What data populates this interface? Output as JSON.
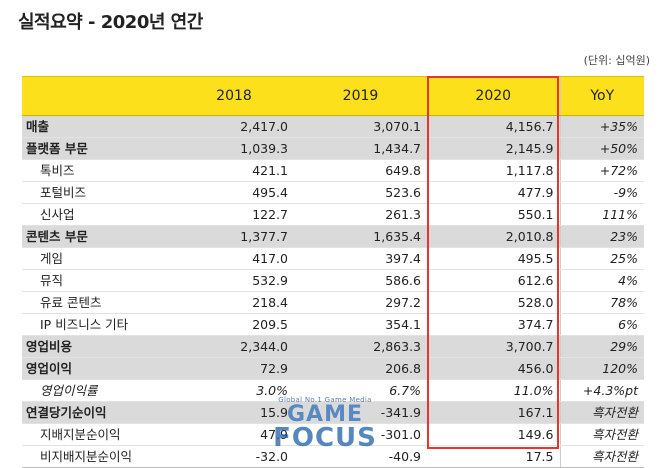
{
  "title": "실적요약 - 2020년 연간",
  "unit": "(단위: 십억원)",
  "columns": [
    "2018",
    "2019",
    "2020",
    "YoY"
  ],
  "rows": [
    {
      "label": "매출",
      "v2018": "2,417.0",
      "v2019": "3,070.1",
      "v2020": "4,156.7",
      "yoy": "+35%",
      "kind": "major"
    },
    {
      "label": "플랫폼 부문",
      "v2018": "1,039.3",
      "v2019": "1,434.7",
      "v2020": "2,145.9",
      "yoy": "+50%",
      "kind": "major"
    },
    {
      "label": "톡비즈",
      "v2018": "421.1",
      "v2019": "649.8",
      "v2020": "1,117.8",
      "yoy": "+72%",
      "kind": "sub"
    },
    {
      "label": "포털비즈",
      "v2018": "495.4",
      "v2019": "523.6",
      "v2020": "477.9",
      "yoy": "-9%",
      "kind": "sub"
    },
    {
      "label": "신사업",
      "v2018": "122.7",
      "v2019": "261.3",
      "v2020": "550.1",
      "yoy": "111%",
      "kind": "sub"
    },
    {
      "label": "콘텐츠 부문",
      "v2018": "1,377.7",
      "v2019": "1,635.4",
      "v2020": "2,010.8",
      "yoy": "23%",
      "kind": "major"
    },
    {
      "label": "게임",
      "v2018": "417.0",
      "v2019": "397.4",
      "v2020": "495.5",
      "yoy": "25%",
      "kind": "sub"
    },
    {
      "label": "뮤직",
      "v2018": "532.9",
      "v2019": "586.6",
      "v2020": "612.6",
      "yoy": "4%",
      "kind": "sub"
    },
    {
      "label": "유료 콘텐츠",
      "v2018": "218.4",
      "v2019": "297.2",
      "v2020": "528.0",
      "yoy": "78%",
      "kind": "sub"
    },
    {
      "label": "IP 비즈니스 기타",
      "v2018": "209.5",
      "v2019": "354.1",
      "v2020": "374.7",
      "yoy": "6%",
      "kind": "sub"
    },
    {
      "label": "영업비용",
      "v2018": "2,344.0",
      "v2019": "2,863.3",
      "v2020": "3,700.7",
      "yoy": "29%",
      "kind": "major"
    },
    {
      "label": "영업이익",
      "v2018": "72.9",
      "v2019": "206.8",
      "v2020": "456.0",
      "yoy": "120%",
      "kind": "major"
    },
    {
      "label": "영업이익률",
      "v2018": "3.0%",
      "v2019": "6.7%",
      "v2020": "11.0%",
      "yoy": "+4.3%pt",
      "kind": "sub italic"
    },
    {
      "label": "연결당기순이익",
      "v2018": "15.9",
      "v2019": "-341.9",
      "v2020": "167.1",
      "yoy": "흑자전환",
      "kind": "major"
    },
    {
      "label": "지배지분순이익",
      "v2018": "47.9",
      "v2019": "-301.0",
      "v2020": "149.6",
      "yoy": "흑자전환",
      "kind": "sub"
    },
    {
      "label": "비지배지분순이익",
      "v2018": "-32.0",
      "v2019": "-40.9",
      "v2020": "17.5",
      "yoy": "흑자전환",
      "kind": "sub last"
    }
  ],
  "watermark": {
    "tagline": "Global No.1 Game Media",
    "line1": "GAME",
    "line2": "FOCUS"
  },
  "colors": {
    "header_bg": "#fbe01b",
    "major_row_bg": "#dadada",
    "highlight_border": "#e8352b"
  }
}
